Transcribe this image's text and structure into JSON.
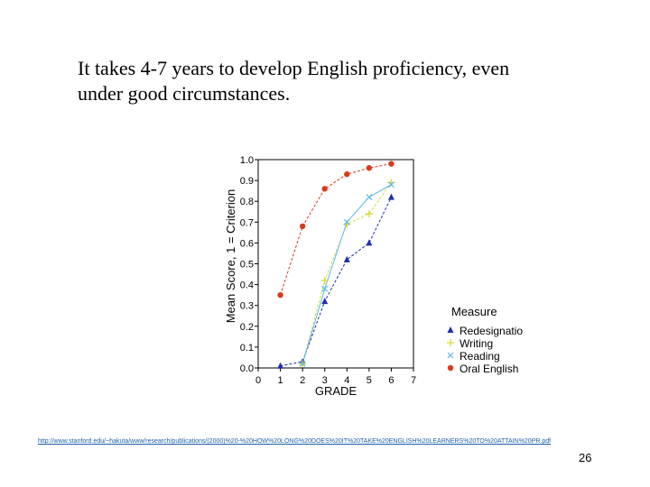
{
  "slide": {
    "title_line1": "It takes 4-7 years to develop English proficiency, even",
    "title_line2": "under good circumstances.",
    "source_url": "http://www.stanford.edu/~hakuta/www/research/publications/(2000)%20-%20HOW%20LONG%20DOES%20IT%20TAKE%20ENGLISH%20LEARNERS%20TO%20ATTAIN%20PR.pdf",
    "page_number": "26"
  },
  "chart_data": {
    "type": "line",
    "title": "",
    "xlabel": "GRADE",
    "ylabel": "Mean Score, 1 = Criterion",
    "xlim": [
      0,
      7
    ],
    "ylim": [
      0.0,
      1.0
    ],
    "x_ticks": [
      "0",
      "1",
      "2",
      "3",
      "4",
      "5",
      "6",
      "7"
    ],
    "y_ticks": [
      "0.0",
      "0.1",
      "0.2",
      "0.3",
      "0.4",
      "0.5",
      "0.6",
      "0.7",
      "0.8",
      "0.9",
      "1.0"
    ],
    "legend_title": "Measure",
    "legend_position": "right",
    "grid": false,
    "series": [
      {
        "name": "Redesignatio",
        "color": "#1f2fa8",
        "marker": "triangle",
        "x": [
          1,
          2,
          3,
          4,
          5,
          6
        ],
        "values": [
          0.01,
          0.03,
          0.32,
          0.52,
          0.6,
          0.82
        ]
      },
      {
        "name": "Writing",
        "color": "#d8d83a",
        "marker": "plus",
        "x": [
          2,
          3,
          4,
          5,
          6
        ],
        "values": [
          0.02,
          0.42,
          0.69,
          0.74,
          0.89
        ]
      },
      {
        "name": "Reading",
        "color": "#59b9e8",
        "marker": "x",
        "x": [
          2,
          3,
          4,
          5,
          6
        ],
        "values": [
          0.02,
          0.38,
          0.7,
          0.82,
          0.88
        ]
      },
      {
        "name": "Oral English",
        "color": "#d83a1c",
        "marker": "circle",
        "x": [
          1,
          2,
          3,
          4,
          5,
          6
        ],
        "values": [
          0.35,
          0.68,
          0.86,
          0.93,
          0.96,
          0.98
        ]
      }
    ]
  }
}
